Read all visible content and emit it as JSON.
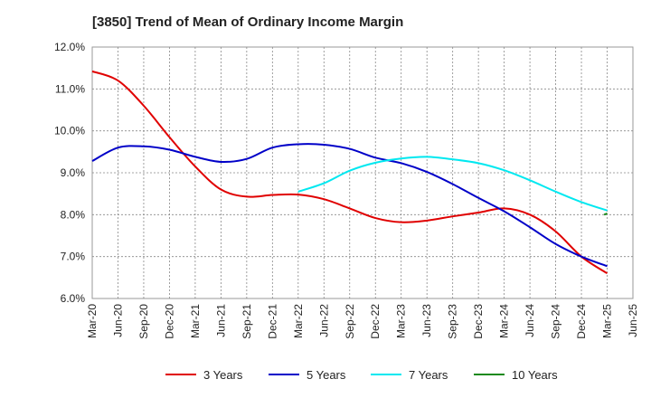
{
  "chart_data": {
    "type": "line",
    "title": "[3850]  Trend of Mean of Ordinary Income Margin",
    "xlabel": "",
    "ylabel": "",
    "x_ticks": [
      "Mar-20",
      "Jun-20",
      "Sep-20",
      "Dec-20",
      "Mar-21",
      "Jun-21",
      "Sep-21",
      "Dec-21",
      "Mar-22",
      "Jun-22",
      "Sep-22",
      "Dec-22",
      "Mar-23",
      "Jun-23",
      "Sep-23",
      "Dec-23",
      "Mar-24",
      "Jun-24",
      "Sep-24",
      "Dec-24",
      "Mar-25",
      "Jun-25"
    ],
    "y_ticks": [
      "6.0%",
      "7.0%",
      "8.0%",
      "9.0%",
      "10.0%",
      "11.0%",
      "12.0%"
    ],
    "ylim": [
      6.0,
      12.0
    ],
    "grid": true,
    "legend_position": "bottom",
    "series": [
      {
        "name": "3 Years",
        "color": "#e00000",
        "x": [
          "Mar-20",
          "Jun-20",
          "Sep-20",
          "Dec-20",
          "Mar-21",
          "Jun-21",
          "Sep-21",
          "Dec-21",
          "Mar-22",
          "Jun-22",
          "Sep-22",
          "Dec-22",
          "Mar-23",
          "Jun-23",
          "Sep-23",
          "Dec-23",
          "Mar-24",
          "Jun-24",
          "Sep-24",
          "Dec-24",
          "Mar-25"
        ],
        "values": [
          11.42,
          11.2,
          10.6,
          9.85,
          9.15,
          8.6,
          8.43,
          8.47,
          8.48,
          8.37,
          8.15,
          7.92,
          7.82,
          7.86,
          7.96,
          8.05,
          8.15,
          8.0,
          7.6,
          7.0,
          6.6
        ]
      },
      {
        "name": "5 Years",
        "color": "#0000c8",
        "x": [
          "Mar-20",
          "Jun-20",
          "Sep-20",
          "Dec-20",
          "Mar-21",
          "Jun-21",
          "Sep-21",
          "Dec-21",
          "Mar-22",
          "Jun-22",
          "Sep-22",
          "Dec-22",
          "Mar-23",
          "Jun-23",
          "Sep-23",
          "Dec-23",
          "Mar-24",
          "Jun-24",
          "Sep-24",
          "Dec-24",
          "Mar-25"
        ],
        "values": [
          9.28,
          9.6,
          9.63,
          9.55,
          9.38,
          9.26,
          9.33,
          9.6,
          9.68,
          9.67,
          9.57,
          9.36,
          9.23,
          9.02,
          8.73,
          8.4,
          8.08,
          7.7,
          7.3,
          7.0,
          6.77
        ]
      },
      {
        "name": "7 Years",
        "color": "#00e8f0",
        "x": [
          "Mar-22",
          "Jun-22",
          "Sep-22",
          "Dec-22",
          "Mar-23",
          "Jun-23",
          "Sep-23",
          "Dec-23",
          "Mar-24",
          "Jun-24",
          "Sep-24",
          "Dec-24",
          "Mar-25"
        ],
        "values": [
          8.55,
          8.75,
          9.05,
          9.24,
          9.34,
          9.38,
          9.32,
          9.23,
          9.06,
          8.82,
          8.55,
          8.3,
          8.1
        ]
      },
      {
        "name": "10 Years",
        "color": "#1a8a1a",
        "x": [
          "Dec-24",
          "Mar-25"
        ],
        "values": [
          8.0,
          8.03
        ],
        "x_offset_start": 0.88
      }
    ]
  }
}
